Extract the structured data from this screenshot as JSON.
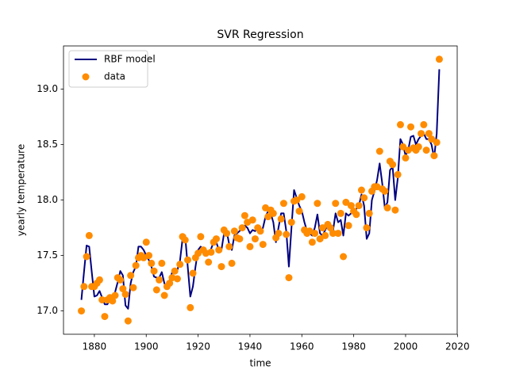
{
  "chart_data": {
    "type": "line",
    "title": "SVR Regression",
    "x_label": "time",
    "y_label": "yearly temperature",
    "x": [
      1875,
      1876,
      1877,
      1878,
      1879,
      1880,
      1881,
      1882,
      1883,
      1884,
      1885,
      1886,
      1887,
      1888,
      1889,
      1890,
      1891,
      1892,
      1893,
      1894,
      1895,
      1896,
      1897,
      1898,
      1899,
      1900,
      1901,
      1902,
      1903,
      1904,
      1905,
      1906,
      1907,
      1908,
      1909,
      1910,
      1911,
      1912,
      1913,
      1914,
      1915,
      1916,
      1917,
      1918,
      1919,
      1920,
      1921,
      1922,
      1923,
      1924,
      1925,
      1926,
      1927,
      1928,
      1929,
      1930,
      1931,
      1932,
      1933,
      1934,
      1935,
      1936,
      1937,
      1938,
      1939,
      1940,
      1941,
      1942,
      1943,
      1944,
      1945,
      1946,
      1947,
      1948,
      1949,
      1950,
      1951,
      1952,
      1953,
      1954,
      1955,
      1956,
      1957,
      1958,
      1959,
      1960,
      1961,
      1962,
      1963,
      1964,
      1965,
      1966,
      1967,
      1968,
      1969,
      1970,
      1971,
      1972,
      1973,
      1974,
      1975,
      1976,
      1977,
      1978,
      1979,
      1980,
      1981,
      1982,
      1983,
      1984,
      1985,
      1986,
      1987,
      1988,
      1989,
      1990,
      1991,
      1992,
      1993,
      1994,
      1995,
      1996,
      1997,
      1998,
      1999,
      2000,
      2001,
      2002,
      2003,
      2004,
      2005,
      2006,
      2007,
      2008,
      2009,
      2010,
      2011,
      2012,
      2013
    ],
    "series": [
      {
        "name": "RBF model",
        "type": "line",
        "color": "#000080",
        "values": [
          17.1,
          17.35,
          17.59,
          17.58,
          17.35,
          17.13,
          17.14,
          17.18,
          17.12,
          17.06,
          17.06,
          17.1,
          17.12,
          17.17,
          17.26,
          17.36,
          17.32,
          17.05,
          17.02,
          17.25,
          17.35,
          17.4,
          17.58,
          17.58,
          17.55,
          17.5,
          17.46,
          17.4,
          17.31,
          17.3,
          17.3,
          17.35,
          17.25,
          17.2,
          17.27,
          17.35,
          17.37,
          17.37,
          17.45,
          17.65,
          17.68,
          17.4,
          17.13,
          17.22,
          17.4,
          17.55,
          17.58,
          17.55,
          17.52,
          17.52,
          17.56,
          17.62,
          17.62,
          17.55,
          17.55,
          17.7,
          17.72,
          17.6,
          17.55,
          17.68,
          17.7,
          17.72,
          17.76,
          17.77,
          17.75,
          17.7,
          17.73,
          17.72,
          17.74,
          17.7,
          17.75,
          17.85,
          17.9,
          17.88,
          17.8,
          17.62,
          17.75,
          17.88,
          17.88,
          17.72,
          17.4,
          17.75,
          18.09,
          18.02,
          17.95,
          17.9,
          17.8,
          17.72,
          17.7,
          17.68,
          17.75,
          17.87,
          17.7,
          17.68,
          17.73,
          17.78,
          17.72,
          17.72,
          17.88,
          17.8,
          17.82,
          17.68,
          17.88,
          17.86,
          17.88,
          17.9,
          17.92,
          17.95,
          18.05,
          17.95,
          17.65,
          17.7,
          18.0,
          18.08,
          18.18,
          18.33,
          18.15,
          17.93,
          17.98,
          18.27,
          18.3,
          18.0,
          18.2,
          18.55,
          18.5,
          18.4,
          18.45,
          18.57,
          18.58,
          18.5,
          18.55,
          18.58,
          18.6,
          18.55,
          18.55,
          18.5,
          18.38,
          18.6,
          19.18
        ]
      },
      {
        "name": "data",
        "type": "scatter",
        "color": "#ff8c00",
        "values": [
          17.0,
          17.22,
          17.49,
          17.68,
          17.22,
          17.22,
          17.25,
          17.28,
          17.1,
          16.95,
          17.1,
          17.12,
          17.09,
          17.14,
          17.3,
          17.28,
          17.2,
          17.15,
          16.91,
          17.32,
          17.21,
          17.41,
          17.48,
          17.5,
          17.48,
          17.62,
          17.5,
          17.43,
          17.36,
          17.19,
          17.28,
          17.43,
          17.14,
          17.22,
          17.25,
          17.3,
          17.36,
          17.29,
          17.42,
          17.67,
          17.64,
          17.46,
          17.03,
          17.34,
          17.48,
          17.52,
          17.67,
          17.55,
          17.52,
          17.44,
          17.53,
          17.62,
          17.65,
          17.55,
          17.4,
          17.73,
          17.7,
          17.58,
          17.43,
          17.72,
          17.66,
          17.65,
          17.75,
          17.86,
          17.8,
          17.58,
          17.82,
          17.65,
          17.75,
          17.72,
          17.6,
          17.93,
          17.85,
          17.91,
          17.88,
          17.66,
          17.7,
          17.83,
          17.97,
          17.69,
          17.3,
          17.8,
          17.99,
          18.0,
          17.9,
          18.03,
          17.73,
          17.7,
          17.72,
          17.62,
          17.7,
          17.97,
          17.65,
          17.75,
          17.68,
          17.78,
          17.75,
          17.7,
          17.97,
          17.7,
          17.88,
          17.49,
          17.98,
          17.77,
          17.95,
          17.9,
          17.87,
          17.95,
          18.09,
          18.02,
          17.75,
          17.88,
          18.08,
          18.12,
          18.12,
          18.44,
          18.1,
          18.08,
          17.93,
          18.35,
          18.32,
          17.91,
          18.23,
          18.68,
          18.48,
          18.38,
          18.45,
          18.66,
          18.47,
          18.45,
          18.48,
          18.6,
          18.68,
          18.45,
          18.6,
          18.55,
          18.4,
          18.52,
          19.27
        ]
      }
    ],
    "xlim": [
      1868.1,
      2019.9
    ],
    "xticks": [
      1880,
      1900,
      1920,
      1940,
      1960,
      1980,
      2000,
      2020
    ],
    "ylim": [
      16.79,
      19.39
    ],
    "yticks": [
      {
        "value": 17,
        "label": "17.0"
      },
      17.5,
      {
        "value": 18,
        "label": "18.0"
      },
      18.5,
      {
        "value": 19,
        "label": "19.0"
      }
    ],
    "legend": "upper left",
    "grid": false
  }
}
